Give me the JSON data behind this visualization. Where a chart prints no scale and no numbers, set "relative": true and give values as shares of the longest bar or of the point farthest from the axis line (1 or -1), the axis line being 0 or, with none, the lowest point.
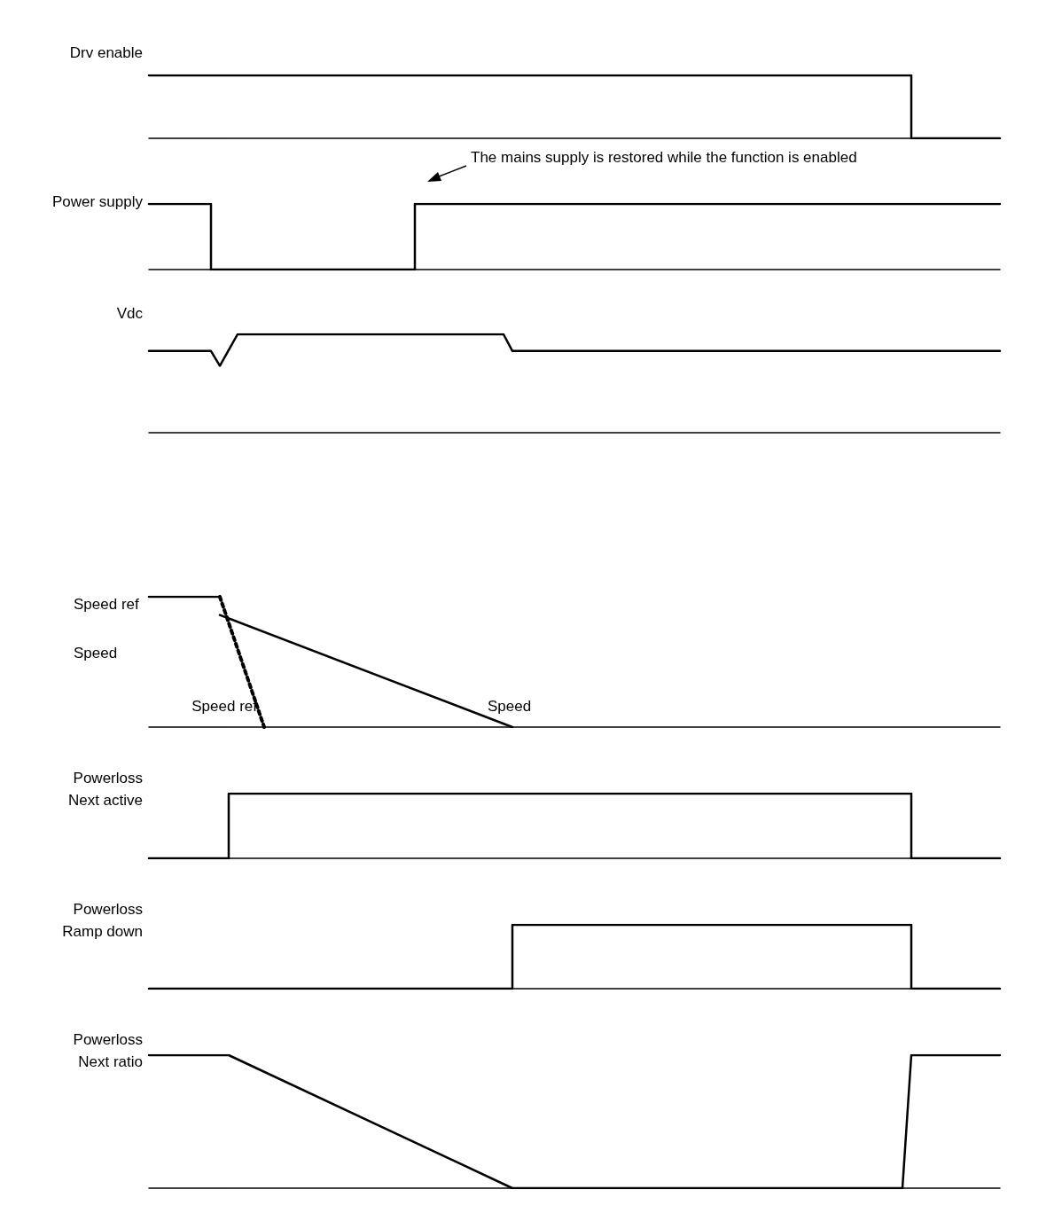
{
  "chart_data": [
    {
      "type": "step",
      "ylabel": "Drv enable",
      "relative": true,
      "marker": "none",
      "categories": [
        null,
        null,
        null,
        null,
        null,
        null,
        null,
        null,
        null,
        null,
        null,
        null,
        null,
        null,
        null,
        null,
        null,
        null,
        null,
        null,
        null,
        null,
        null,
        null,
        null,
        null,
        null,
        null,
        null,
        null,
        null,
        null,
        null,
        null,
        null,
        null,
        null,
        null,
        null,
        null,
        null,
        null,
        null,
        null,
        null,
        null,
        null,
        null,
        null,
        null,
        null,
        null,
        null,
        null,
        null,
        null,
        null,
        null,
        null,
        null,
        null,
        null,
        null,
        null,
        null,
        null,
        null,
        null,
        null,
        null,
        null,
        null,
        null,
        null,
        null,
        null,
        null,
        null,
        null,
        null,
        null,
        null,
        null,
        null,
        null,
        null,
        null,
        null,
        null,
        null,
        null,
        null,
        null,
        null,
        null,
        null,
        null
      ],
      "series": [
        {
          "color": "#000000",
          "values": [
            1,
            null,
            null,
            null,
            null,
            null,
            null,
            null,
            null,
            null,
            null,
            null,
            null,
            null,
            null,
            null,
            null,
            null,
            null,
            null,
            null,
            null,
            null,
            null,
            null,
            null,
            null,
            null,
            null,
            null,
            null,
            null,
            null,
            null,
            null,
            null,
            null,
            null,
            null,
            null,
            null,
            null,
            null,
            null,
            null,
            null,
            null,
            null,
            null,
            null,
            null,
            null,
            null,
            null,
            null,
            null,
            null,
            null,
            null,
            null,
            null,
            null,
            null,
            null,
            null,
            null,
            null,
            null,
            null,
            null,
            null,
            null,
            null,
            null,
            null,
            null,
            null,
            null,
            null,
            null,
            null,
            null,
            null,
            null,
            null,
            1,
            0,
            null,
            null,
            null,
            null,
            null,
            null,
            null,
            null,
            null,
            0
          ]
        }
      ]
    },
    {
      "type": "step",
      "ylabel": "Power supply",
      "relative": true,
      "marker": "none",
      "annotations": [
        "The mains supply is restored while the function is enabled"
      ],
      "categories": [
        null,
        null,
        null,
        null,
        null,
        null,
        null,
        null,
        null,
        null,
        null,
        null,
        null,
        null,
        null,
        null,
        null,
        null,
        null,
        null,
        null,
        null,
        null,
        null,
        null,
        null,
        null,
        null,
        null,
        null,
        null,
        null,
        null,
        null,
        null,
        null,
        null,
        null,
        null,
        null,
        null,
        null,
        null,
        null,
        null,
        null,
        null,
        null,
        null,
        null,
        null,
        null,
        null,
        null,
        null,
        null,
        null,
        null,
        null,
        null,
        null,
        null,
        null,
        null,
        null,
        null,
        null,
        null,
        null,
        null,
        null,
        null,
        null,
        null,
        null,
        null,
        null,
        null,
        null,
        null,
        null,
        null,
        null,
        null,
        null,
        null,
        null,
        null,
        null,
        null,
        null,
        null,
        null,
        null,
        null,
        null,
        null
      ],
      "series": [
        {
          "color": "#000000",
          "values": [
            1,
            null,
            null,
            null,
            null,
            null,
            null,
            0,
            null,
            null,
            null,
            null,
            null,
            null,
            null,
            null,
            null,
            null,
            null,
            null,
            null,
            null,
            null,
            null,
            null,
            null,
            null,
            null,
            null,
            null,
            1,
            null,
            null,
            null,
            null,
            null,
            null,
            null,
            null,
            null,
            null,
            null,
            null,
            null,
            null,
            null,
            null,
            null,
            null,
            null,
            null,
            null,
            null,
            null,
            null,
            null,
            null,
            null,
            null,
            null,
            null,
            null,
            null,
            null,
            null,
            null,
            null,
            null,
            null,
            null,
            null,
            null,
            null,
            null,
            null,
            null,
            null,
            null,
            null,
            null,
            null,
            null,
            null,
            null,
            null,
            null,
            null,
            null,
            null,
            null,
            null,
            null,
            null,
            null,
            null,
            null,
            1
          ]
        }
      ]
    },
    {
      "type": "line",
      "ylabel": "Vdc",
      "relative": true,
      "marker": "none",
      "categories": [
        null,
        null,
        null,
        null,
        null,
        null,
        null,
        null,
        null,
        null,
        null,
        null,
        null,
        null,
        null,
        null,
        null,
        null,
        null,
        null,
        null,
        null,
        null,
        null,
        null,
        null,
        null,
        null,
        null,
        null,
        null,
        null,
        null,
        null,
        null,
        null,
        null,
        null,
        null,
        null,
        null,
        null,
        null,
        null,
        null,
        null,
        null,
        null,
        null,
        null,
        null,
        null,
        null,
        null,
        null,
        null,
        null,
        null,
        null,
        null,
        null,
        null,
        null,
        null,
        null,
        null,
        null,
        null,
        null,
        null,
        null,
        null,
        null,
        null,
        null,
        null,
        null,
        null,
        null,
        null,
        null,
        null,
        null,
        null,
        null,
        null,
        null,
        null,
        null,
        null,
        null,
        null,
        null,
        null,
        null,
        null,
        null
      ],
      "series": [
        {
          "color": "#000000",
          "values": [
            0.83,
            null,
            null,
            null,
            null,
            null,
            null,
            0.83,
            0.68,
            null,
            1,
            null,
            null,
            null,
            null,
            null,
            null,
            null,
            null,
            null,
            null,
            null,
            null,
            null,
            null,
            null,
            null,
            null,
            null,
            null,
            null,
            null,
            null,
            null,
            null,
            null,
            null,
            null,
            null,
            null,
            1,
            0.83,
            null,
            null,
            null,
            null,
            null,
            null,
            null,
            null,
            null,
            null,
            null,
            null,
            null,
            null,
            null,
            null,
            null,
            null,
            null,
            null,
            null,
            null,
            null,
            null,
            null,
            null,
            null,
            null,
            null,
            null,
            null,
            null,
            null,
            null,
            null,
            null,
            null,
            null,
            null,
            null,
            null,
            null,
            null,
            null,
            null,
            null,
            null,
            null,
            null,
            null,
            null,
            null,
            null,
            null,
            0.83
          ]
        }
      ]
    },
    {
      "type": "line",
      "relative": true,
      "marker": "none",
      "legend": "left",
      "categories": [
        null,
        null,
        null,
        null,
        null,
        null,
        null,
        null,
        null,
        null,
        null,
        null,
        null,
        null,
        null,
        null,
        null,
        null,
        null,
        null,
        null,
        null,
        null,
        null,
        null,
        null,
        null,
        null,
        null,
        null,
        null,
        null,
        null,
        null,
        null,
        null,
        null,
        null,
        null,
        null,
        null,
        null,
        null,
        null,
        null,
        null,
        null,
        null,
        null,
        null,
        null,
        null,
        null,
        null,
        null,
        null,
        null,
        null,
        null,
        null,
        null,
        null,
        null,
        null,
        null,
        null,
        null,
        null,
        null,
        null,
        null,
        null,
        null,
        null,
        null,
        null,
        null,
        null,
        null,
        null,
        null,
        null,
        null,
        null,
        null,
        null,
        null,
        null,
        null,
        null,
        null,
        null,
        null,
        null,
        null,
        null,
        null
      ],
      "series": [
        {
          "color": "#000000",
          "values": [
            1,
            null,
            null,
            null,
            null,
            null,
            null,
            null,
            1,
            null,
            null,
            null,
            null,
            null,
            null,
            null,
            null,
            null,
            null,
            null,
            null,
            null,
            null,
            null,
            null,
            null,
            null,
            null,
            null,
            null,
            null,
            null,
            null,
            null,
            null,
            null,
            null,
            null,
            null,
            null,
            null,
            null,
            null,
            null,
            null,
            null,
            null,
            null,
            null,
            null,
            null,
            null,
            null,
            null,
            null,
            null,
            null,
            null,
            null,
            null,
            null,
            null,
            null,
            null,
            null,
            null,
            null,
            null,
            null,
            null,
            null,
            null,
            null,
            null,
            null,
            null,
            null,
            null,
            null,
            null,
            null,
            null,
            null,
            null,
            null,
            null,
            null,
            null,
            null,
            null,
            null,
            null,
            null,
            null,
            null,
            null,
            null
          ]
        },
        {
          "name": "Speed ref",
          "color": "#000000",
          "line_style": "dotted",
          "values": [
            null,
            null,
            null,
            null,
            null,
            null,
            null,
            null,
            1,
            null,
            null,
            null,
            null,
            0,
            null,
            null,
            null,
            null,
            null,
            null,
            null,
            null,
            null,
            null,
            null,
            null,
            null,
            null,
            null,
            null,
            null,
            null,
            null,
            null,
            null,
            null,
            null,
            null,
            null,
            null,
            null,
            null,
            null,
            null,
            null,
            null,
            null,
            null,
            null,
            null,
            null,
            null,
            null,
            null,
            null,
            null,
            null,
            null,
            null,
            null,
            null,
            null,
            null,
            null,
            null,
            null,
            null,
            null,
            null,
            null,
            null,
            null,
            null,
            null,
            null,
            null,
            null,
            null,
            null,
            null,
            null,
            null,
            null,
            null,
            null,
            null,
            null,
            null,
            null,
            null,
            null,
            null,
            null,
            null,
            null,
            null,
            null
          ]
        },
        {
          "name": "Speed",
          "color": "#000000",
          "values": [
            null,
            null,
            null,
            null,
            null,
            null,
            null,
            null,
            0.86,
            null,
            null,
            null,
            null,
            null,
            null,
            null,
            null,
            null,
            null,
            null,
            null,
            null,
            null,
            null,
            null,
            null,
            null,
            null,
            null,
            null,
            null,
            null,
            null,
            null,
            null,
            null,
            null,
            null,
            null,
            null,
            null,
            0,
            null,
            null,
            null,
            null,
            null,
            null,
            null,
            null,
            null,
            null,
            null,
            null,
            null,
            null,
            null,
            null,
            null,
            null,
            null,
            null,
            null,
            null,
            null,
            null,
            null,
            null,
            null,
            null,
            null,
            null,
            null,
            null,
            null,
            null,
            null,
            null,
            null,
            null,
            null,
            null,
            null,
            null,
            null,
            null,
            null,
            null,
            null,
            null,
            null,
            null,
            null,
            null,
            null,
            null,
            null
          ]
        }
      ]
    },
    {
      "type": "step",
      "ylabel": "Powerloss\nNext active",
      "relative": true,
      "marker": "none",
      "categories": [
        null,
        null,
        null,
        null,
        null,
        null,
        null,
        null,
        null,
        null,
        null,
        null,
        null,
        null,
        null,
        null,
        null,
        null,
        null,
        null,
        null,
        null,
        null,
        null,
        null,
        null,
        null,
        null,
        null,
        null,
        null,
        null,
        null,
        null,
        null,
        null,
        null,
        null,
        null,
        null,
        null,
        null,
        null,
        null,
        null,
        null,
        null,
        null,
        null,
        null,
        null,
        null,
        null,
        null,
        null,
        null,
        null,
        null,
        null,
        null,
        null,
        null,
        null,
        null,
        null,
        null,
        null,
        null,
        null,
        null,
        null,
        null,
        null,
        null,
        null,
        null,
        null,
        null,
        null,
        null,
        null,
        null,
        null,
        null,
        null,
        null,
        null,
        null,
        null,
        null,
        null,
        null,
        null,
        null,
        null,
        null,
        null
      ],
      "series": [
        {
          "color": "#000000",
          "values": [
            0,
            null,
            null,
            null,
            null,
            null,
            null,
            null,
            null,
            1,
            null,
            null,
            null,
            null,
            null,
            null,
            null,
            null,
            null,
            null,
            null,
            null,
            null,
            null,
            null,
            null,
            null,
            null,
            null,
            null,
            null,
            null,
            null,
            null,
            null,
            null,
            null,
            null,
            null,
            null,
            null,
            null,
            null,
            null,
            null,
            null,
            null,
            null,
            null,
            null,
            null,
            null,
            null,
            null,
            null,
            null,
            null,
            null,
            null,
            null,
            null,
            null,
            null,
            null,
            null,
            null,
            null,
            null,
            null,
            null,
            null,
            null,
            null,
            null,
            null,
            null,
            null,
            null,
            null,
            null,
            null,
            null,
            null,
            null,
            null,
            null,
            0,
            null,
            null,
            null,
            null,
            null,
            null,
            null,
            null,
            null,
            0
          ]
        }
      ]
    },
    {
      "type": "step",
      "ylabel": "Powerloss\nRamp down",
      "relative": true,
      "marker": "none",
      "categories": [
        null,
        null,
        null,
        null,
        null,
        null,
        null,
        null,
        null,
        null,
        null,
        null,
        null,
        null,
        null,
        null,
        null,
        null,
        null,
        null,
        null,
        null,
        null,
        null,
        null,
        null,
        null,
        null,
        null,
        null,
        null,
        null,
        null,
        null,
        null,
        null,
        null,
        null,
        null,
        null,
        null,
        null,
        null,
        null,
        null,
        null,
        null,
        null,
        null,
        null,
        null,
        null,
        null,
        null,
        null,
        null,
        null,
        null,
        null,
        null,
        null,
        null,
        null,
        null,
        null,
        null,
        null,
        null,
        null,
        null,
        null,
        null,
        null,
        null,
        null,
        null,
        null,
        null,
        null,
        null,
        null,
        null,
        null,
        null,
        null,
        null,
        null,
        null,
        null,
        null,
        null,
        null,
        null,
        null,
        null,
        null,
        null
      ],
      "series": [
        {
          "color": "#000000",
          "values": [
            0,
            null,
            null,
            null,
            null,
            null,
            null,
            null,
            null,
            null,
            null,
            null,
            null,
            null,
            null,
            null,
            null,
            null,
            null,
            null,
            null,
            null,
            null,
            null,
            null,
            null,
            null,
            null,
            null,
            null,
            null,
            null,
            null,
            null,
            null,
            null,
            null,
            null,
            null,
            null,
            null,
            1,
            null,
            null,
            null,
            null,
            null,
            null,
            null,
            null,
            null,
            null,
            null,
            null,
            null,
            null,
            null,
            null,
            null,
            null,
            null,
            null,
            null,
            null,
            null,
            null,
            null,
            null,
            null,
            null,
            null,
            null,
            null,
            null,
            null,
            null,
            null,
            null,
            null,
            null,
            null,
            null,
            null,
            null,
            null,
            null,
            0,
            null,
            null,
            null,
            null,
            null,
            null,
            null,
            null,
            null,
            0
          ]
        }
      ]
    },
    {
      "type": "line",
      "ylabel": "Powerloss\nNext ratio",
      "relative": true,
      "marker": "none",
      "categories": [
        null,
        null,
        null,
        null,
        null,
        null,
        null,
        null,
        null,
        null,
        null,
        null,
        null,
        null,
        null,
        null,
        null,
        null,
        null,
        null,
        null,
        null,
        null,
        null,
        null,
        null,
        null,
        null,
        null,
        null,
        null,
        null,
        null,
        null,
        null,
        null,
        null,
        null,
        null,
        null,
        null,
        null,
        null,
        null,
        null,
        null,
        null,
        null,
        null,
        null,
        null,
        null,
        null,
        null,
        null,
        null,
        null,
        null,
        null,
        null,
        null,
        null,
        null,
        null,
        null,
        null,
        null,
        null,
        null,
        null,
        null,
        null,
        null,
        null,
        null,
        null,
        null,
        null,
        null,
        null,
        null,
        null,
        null,
        null,
        null,
        null,
        null,
        null,
        null,
        null,
        null,
        null,
        null,
        null,
        null,
        null,
        null
      ],
      "series": [
        {
          "color": "#000000",
          "values": [
            1,
            null,
            null,
            null,
            null,
            null,
            null,
            null,
            null,
            1,
            null,
            null,
            null,
            null,
            null,
            null,
            null,
            null,
            null,
            null,
            null,
            null,
            null,
            null,
            null,
            null,
            null,
            null,
            null,
            null,
            null,
            null,
            null,
            null,
            null,
            null,
            null,
            null,
            null,
            null,
            null,
            0,
            null,
            null,
            null,
            null,
            null,
            null,
            null,
            null,
            null,
            null,
            null,
            null,
            null,
            null,
            null,
            null,
            null,
            null,
            null,
            null,
            null,
            null,
            null,
            null,
            null,
            null,
            null,
            null,
            null,
            null,
            null,
            null,
            null,
            null,
            null,
            null,
            null,
            null,
            null,
            null,
            null,
            null,
            null,
            0,
            1,
            null,
            null,
            null,
            null,
            null,
            null,
            null,
            null,
            null,
            1
          ]
        }
      ]
    }
  ]
}
